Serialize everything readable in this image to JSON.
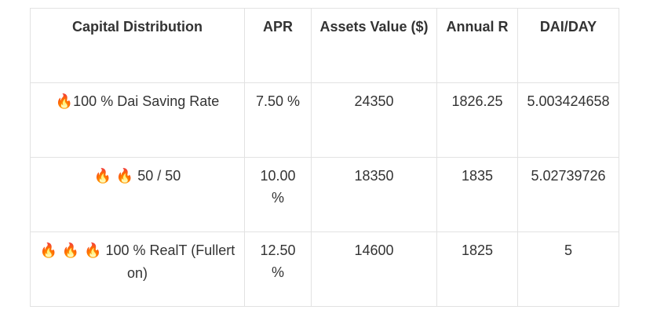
{
  "table": {
    "headers": [
      "Capital Distribution",
      "APR",
      "Assets Value ($)",
      "Annual R",
      "DAI/DAY"
    ],
    "rows": [
      {
        "icons": "🔥",
        "distribution": "100 % Dai Saving Rate",
        "apr": "7.50 %",
        "assets_value": "24350",
        "annual_r": "1826.25",
        "dai_per_day": "5.003424658"
      },
      {
        "icons": "🔥 🔥",
        "distribution": "50 / 50",
        "apr": "10.00 %",
        "assets_value": "18350",
        "annual_r": "1835",
        "dai_per_day": "5.02739726"
      },
      {
        "icons": "🔥 🔥 🔥",
        "distribution": "100 % RealT (Fullerton)",
        "apr": "12.50 %",
        "assets_value": "14600",
        "annual_r": "1825",
        "dai_per_day": "5"
      }
    ]
  },
  "icon_names": [
    "fire-icon"
  ],
  "colors": {
    "text": "#333333",
    "border": "#e2e2e2",
    "fire": "#f4511e"
  }
}
